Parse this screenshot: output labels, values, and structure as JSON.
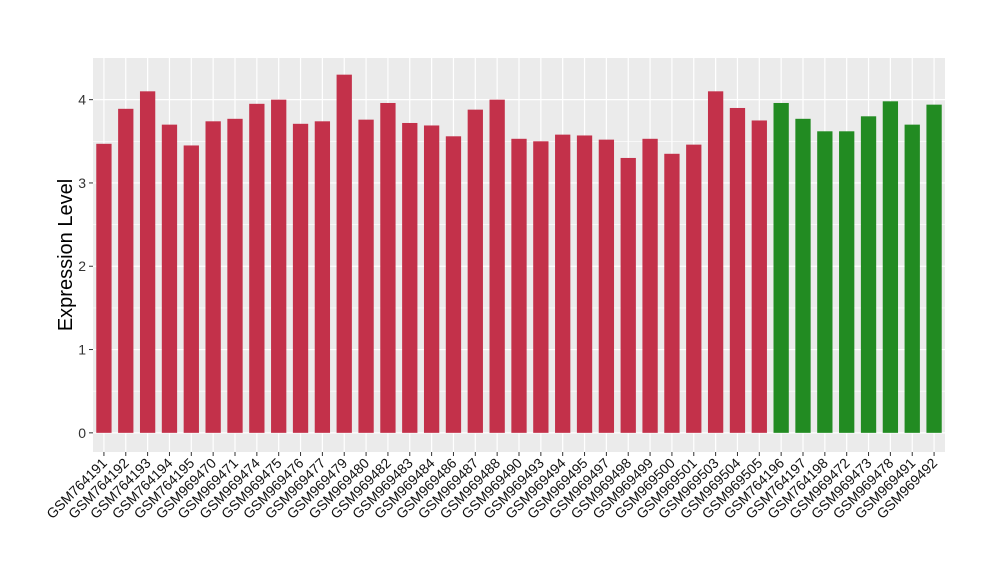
{
  "chart_data": {
    "type": "bar",
    "title": "",
    "xlabel": "",
    "ylabel": "Expression Level",
    "ylim": [
      -0.23,
      4.5
    ],
    "yticks": [
      0,
      1,
      2,
      3,
      4
    ],
    "grid": true,
    "legend": "none",
    "colors": {
      "group1": "#C3314A",
      "group2": "#228B22",
      "panel": "#EBEBEB",
      "grid": "#FFFFFF"
    },
    "categories": [
      "GSM764191",
      "GSM764192",
      "GSM764193",
      "GSM764194",
      "GSM764195",
      "GSM969470",
      "GSM969471",
      "GSM969474",
      "GSM969475",
      "GSM969476",
      "GSM969477",
      "GSM969479",
      "GSM969480",
      "GSM969482",
      "GSM969483",
      "GSM969484",
      "GSM969486",
      "GSM969487",
      "GSM969488",
      "GSM969490",
      "GSM969493",
      "GSM969494",
      "GSM969495",
      "GSM969497",
      "GSM969498",
      "GSM969499",
      "GSM969500",
      "GSM969501",
      "GSM969503",
      "GSM969504",
      "GSM969505",
      "GSM764196",
      "GSM764197",
      "GSM764198",
      "GSM969472",
      "GSM969473",
      "GSM969478",
      "GSM969491",
      "GSM969492"
    ],
    "values": [
      3.47,
      3.89,
      4.1,
      3.7,
      3.45,
      3.74,
      3.77,
      3.95,
      4.0,
      3.71,
      3.74,
      4.3,
      3.76,
      3.96,
      3.72,
      3.69,
      3.56,
      3.88,
      4.0,
      3.53,
      3.5,
      3.58,
      3.57,
      3.52,
      3.3,
      3.53,
      3.35,
      3.46,
      4.1,
      3.9,
      3.75,
      3.96,
      3.77,
      3.62,
      3.62,
      3.8,
      3.98,
      3.7,
      3.94
    ],
    "groups": [
      1,
      1,
      1,
      1,
      1,
      1,
      1,
      1,
      1,
      1,
      1,
      1,
      1,
      1,
      1,
      1,
      1,
      1,
      1,
      1,
      1,
      1,
      1,
      1,
      1,
      1,
      1,
      1,
      1,
      1,
      1,
      2,
      2,
      2,
      2,
      2,
      2,
      2,
      2
    ]
  }
}
